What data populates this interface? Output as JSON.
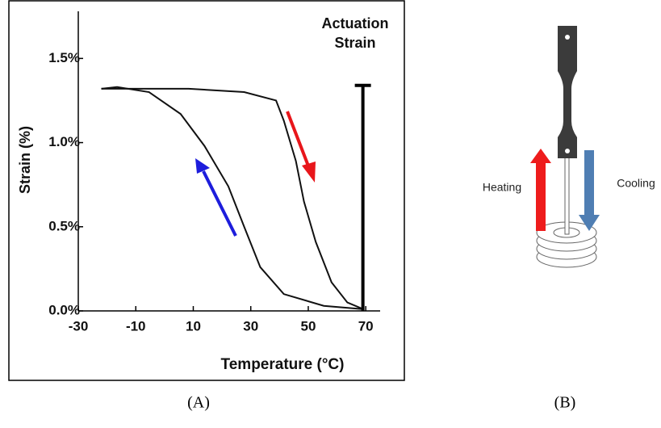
{
  "chart_data": {
    "type": "line",
    "x_label": "Temperature (°C)",
    "y_label": "Strain (%)",
    "xlim": [
      -30,
      75
    ],
    "ylim": [
      0,
      1.78
    ],
    "xticks": [
      -30,
      -10,
      10,
      30,
      50,
      70
    ],
    "yticks": [
      {
        "value": 0,
        "label": "0.0%"
      },
      {
        "value": 0.5,
        "label": "0.5%"
      },
      {
        "value": 1,
        "label": "1.0%"
      },
      {
        "value": 1.5,
        "label": "1.5%"
      }
    ],
    "series": [
      {
        "color": "#111111",
        "x": [
          -22,
          8.4,
          27.7,
          38.8,
          41.5,
          45.7,
          48.5,
          52.6,
          58.1,
          63.6,
          69.2
        ],
        "values": [
          1.32,
          1.32,
          1.3,
          1.25,
          1.13,
          0.89,
          0.65,
          0.41,
          0.17,
          0.05,
          0.01
        ]
      },
      {
        "color": "#111111",
        "x": [
          69.2,
          55.4,
          41.5,
          33.3,
          27.7,
          22.2,
          13.9,
          5.6,
          -5.4,
          -16.5,
          -22
        ],
        "values": [
          0.01,
          0.03,
          0.1,
          0.26,
          0.5,
          0.74,
          0.98,
          1.17,
          1.3,
          1.33,
          1.32
        ]
      }
    ],
    "annotation": {
      "lines": [
        "Actuation",
        "Strain"
      ],
      "x": 69,
      "y": [
        0,
        1.34
      ]
    },
    "captions": [
      "(A)",
      "(B)"
    ],
    "diagram_labels": {
      "heating": "Heating",
      "cooling": "Cooling"
    }
  }
}
